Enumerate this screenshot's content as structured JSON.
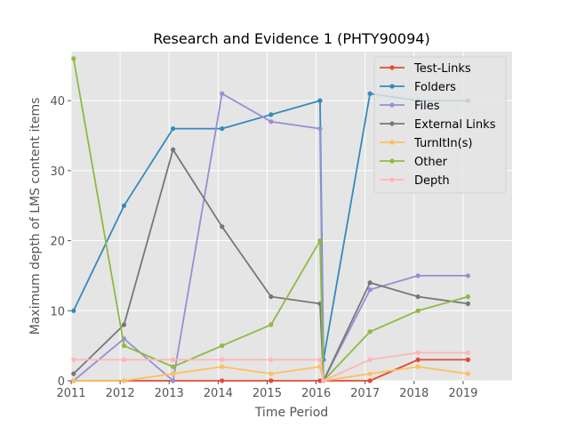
{
  "chart_data": {
    "type": "line",
    "title": "Research and Evidence 1 (PHTY90094)",
    "xlabel": "Time Period",
    "ylabel": "Maximum depth of LMS content items",
    "xlim": [
      2011,
      2020
    ],
    "ylim": [
      0,
      47
    ],
    "xticks": [
      "2011",
      "2012",
      "2013",
      "2014",
      "2015",
      "2016",
      "2017",
      "2018",
      "2019"
    ],
    "yticks": [
      "0",
      "10",
      "20",
      "30",
      "40"
    ],
    "grid": true,
    "legend_position": "upper right",
    "x": [
      2011.05,
      2012.08,
      2013.08,
      2014.08,
      2015.08,
      2016.08,
      2016.15,
      2017.1,
      2018.08,
      2019.1
    ],
    "series": [
      {
        "name": "Test-Links",
        "color": "#E24A33",
        "values": [
          0,
          0,
          0,
          0,
          0,
          0,
          0,
          0,
          3,
          3
        ]
      },
      {
        "name": "Folders",
        "color": "#348ABD",
        "values": [
          10,
          25,
          36,
          36,
          38,
          40,
          3,
          41,
          40,
          40
        ]
      },
      {
        "name": "Files",
        "color": "#988ED5",
        "values": [
          0,
          6,
          0,
          41,
          37,
          36,
          0,
          13,
          15,
          15
        ]
      },
      {
        "name": "External Links",
        "color": "#777777",
        "values": [
          1,
          8,
          33,
          22,
          12,
          11,
          0,
          14,
          12,
          11
        ]
      },
      {
        "name": "TurnItIn(s)",
        "color": "#FBC15E",
        "values": [
          0,
          0,
          1,
          2,
          1,
          2,
          0,
          1,
          2,
          1
        ]
      },
      {
        "name": "Other",
        "color": "#8EBA42",
        "values": [
          46,
          5,
          2,
          5,
          8,
          20,
          0,
          7,
          10,
          12
        ]
      },
      {
        "name": "Depth",
        "color": "#FFB5B8",
        "values": [
          3,
          3,
          3,
          3,
          3,
          3,
          0,
          3,
          4,
          4
        ]
      }
    ]
  }
}
